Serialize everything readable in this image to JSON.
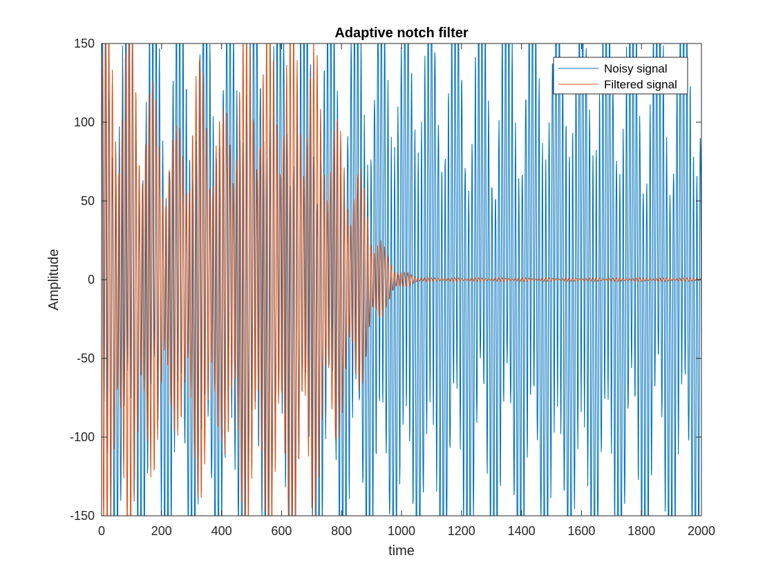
{
  "chart_data": {
    "type": "line",
    "title": "Adaptive notch filter",
    "xlabel": "time",
    "ylabel": "Amplitude",
    "xlim": [
      0,
      2000
    ],
    "ylim": [
      -150,
      150
    ],
    "xticks": [
      "0",
      "200",
      "400",
      "600",
      "800",
      "1000",
      "1200",
      "1400",
      "1600",
      "1800",
      "2000"
    ],
    "yticks": [
      "-150",
      "-100",
      "-50",
      "0",
      "50",
      "100",
      "150"
    ],
    "grid": false,
    "legend_position": "top-right",
    "series": [
      {
        "name": "Noisy signal",
        "color": "#0072BD",
        "description": "noisy sinusoid spanning the full time range",
        "x": [
          0,
          50,
          100,
          150,
          200,
          250,
          300,
          350,
          400,
          450,
          500,
          550,
          600,
          650,
          700,
          750,
          800,
          850,
          900,
          950,
          1000,
          1050,
          1100,
          1150,
          1200,
          1250,
          1300,
          1350,
          1400,
          1450,
          1500,
          1550,
          1600,
          1650,
          1700,
          1750,
          1800,
          1850,
          1900,
          1950,
          2000
        ],
        "envelope": [
          150,
          150,
          150,
          150,
          150,
          150,
          150,
          150,
          150,
          150,
          150,
          150,
          150,
          150,
          150,
          150,
          150,
          150,
          150,
          150,
          150,
          150,
          150,
          150,
          150,
          150,
          150,
          150,
          150,
          150,
          150,
          150,
          150,
          150,
          150,
          150,
          150,
          150,
          150,
          150,
          150
        ]
      },
      {
        "name": "Filtered signal",
        "color": "#D95319",
        "x": [
          0,
          50,
          100,
          150,
          200,
          250,
          300,
          350,
          400,
          450,
          500,
          550,
          600,
          650,
          700,
          750,
          800,
          850,
          900,
          950,
          1000,
          1050,
          1100,
          1150,
          1200,
          1250,
          1300,
          1350,
          1400,
          1450,
          1500,
          1550,
          1600,
          1650,
          1700,
          1750,
          1800,
          1850,
          1900,
          1950,
          2000
        ],
        "envelope": [
          150,
          150,
          150,
          120,
          100,
          85,
          120,
          130,
          90,
          140,
          150,
          150,
          150,
          150,
          140,
          110,
          85,
          70,
          40,
          15,
          5,
          2,
          1,
          1,
          1,
          1,
          1,
          1,
          1,
          1,
          1,
          1,
          1,
          1,
          1,
          1,
          1,
          1,
          1,
          1,
          1
        ]
      }
    ]
  }
}
